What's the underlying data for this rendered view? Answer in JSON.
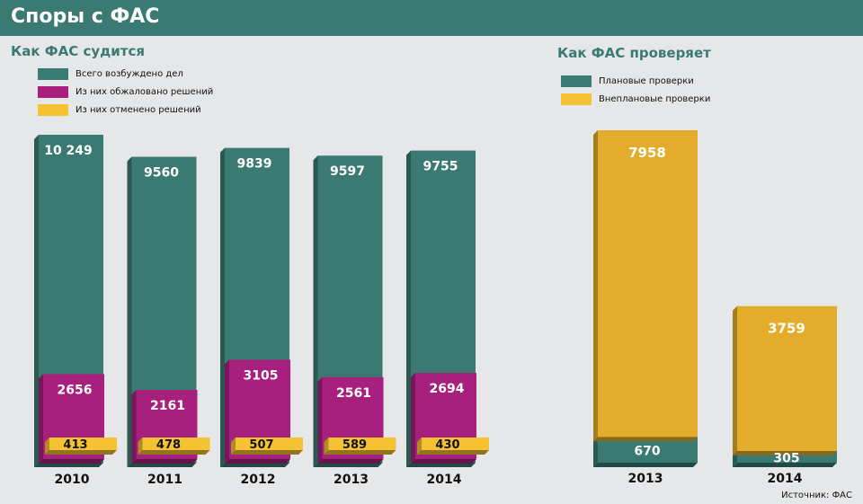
{
  "header": {
    "title": "Споры с ФАС"
  },
  "source": "Источник: ФАС",
  "colors": {
    "teal": "#3a7a72",
    "magenta": "#a8207e",
    "yellow": "#e3ad2b",
    "background": "#e6e7e8"
  },
  "chart_data": [
    {
      "type": "bar",
      "title": "Как ФАС судится",
      "categories": [
        "2010",
        "2011",
        "2012",
        "2013",
        "2014"
      ],
      "series": [
        {
          "name": "Всего возбуждено дел",
          "values": [
            10249,
            9560,
            9839,
            9597,
            9755
          ],
          "labels": [
            "10 249",
            "9560",
            "9839",
            "9597",
            "9755"
          ],
          "color": "#3a7a72"
        },
        {
          "name": "Из них обжаловано решений",
          "values": [
            2656,
            2161,
            3105,
            2561,
            2694
          ],
          "labels": [
            "2656",
            "2161",
            "3105",
            "2561",
            "2694"
          ],
          "color": "#a8207e"
        },
        {
          "name": "Из них отменено решений",
          "values": [
            413,
            478,
            507,
            589,
            430
          ],
          "labels": [
            "413",
            "478",
            "507",
            "589",
            "430"
          ],
          "color": "#f4c233"
        }
      ],
      "legend": "top-left"
    },
    {
      "type": "bar",
      "stacked": true,
      "title": "Как ФАС проверяет",
      "categories": [
        "2013",
        "2014"
      ],
      "series": [
        {
          "name": "Плановые проверки",
          "values": [
            670,
            305
          ],
          "labels": [
            "670",
            "305"
          ],
          "color": "#3a7a72"
        },
        {
          "name": "Внеплановые проверки",
          "values": [
            7958,
            3759
          ],
          "labels": [
            "7958",
            "3759"
          ],
          "color": "#e3ad2b"
        }
      ],
      "legend": "top-left"
    }
  ]
}
